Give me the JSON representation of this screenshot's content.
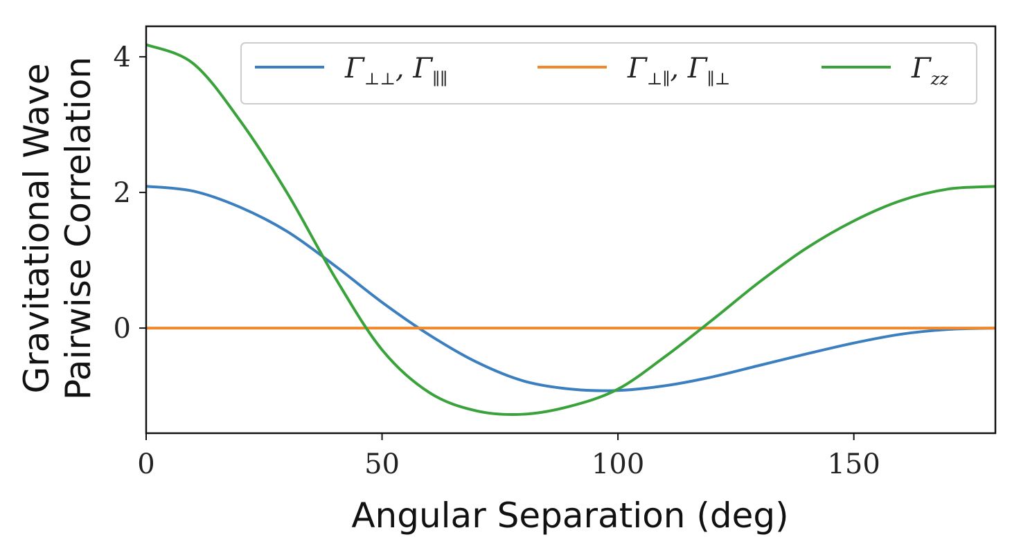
{
  "chart_data": {
    "type": "line",
    "title": "",
    "xlabel": "Angular Separation (deg)",
    "ylabel_lines": [
      "Gravitational Wave",
      "Pairwise Correlation"
    ],
    "xlim": [
      0,
      180
    ],
    "ylim": [
      -1.55,
      4.45
    ],
    "xticks": [
      0,
      50,
      100,
      150
    ],
    "xtick_labels": [
      "0",
      "50",
      "100",
      "150"
    ],
    "yticks": [
      0,
      2,
      4
    ],
    "ytick_labels": [
      "0",
      "2",
      "4"
    ],
    "grid": false,
    "legend_position": "top",
    "x": [
      0,
      10,
      20,
      30,
      40,
      50,
      60,
      70,
      80,
      90,
      100,
      110,
      120,
      130,
      140,
      150,
      160,
      170,
      180
    ],
    "series": [
      {
        "name": "Γ⊥⊥, Γ∥∥",
        "legend_main": "Γ",
        "legend_sub1": "⊥⊥",
        "legend_mid": ", Γ",
        "legend_sub2": "∥∥",
        "color": "#3b7fbf",
        "values": [
          2.09,
          2.02,
          1.78,
          1.42,
          0.92,
          0.38,
          -0.1,
          -0.5,
          -0.78,
          -0.9,
          -0.92,
          -0.85,
          -0.72,
          -0.55,
          -0.38,
          -0.22,
          -0.09,
          -0.02,
          0.0
        ]
      },
      {
        "name": "Γ⊥∥, Γ∥⊥",
        "legend_main": "Γ",
        "legend_sub1": "⊥∥",
        "legend_mid": ", Γ",
        "legend_sub2": "∥⊥",
        "color": "#f0882e",
        "values": [
          0,
          0,
          0,
          0,
          0,
          0,
          0,
          0,
          0,
          0,
          0,
          0,
          0,
          0,
          0,
          0,
          0,
          0,
          0
        ]
      },
      {
        "name": "Γzz",
        "legend_main": "Γ",
        "legend_sub1": "zz",
        "legend_mid": "",
        "legend_sub2": "",
        "color": "#3aa23a",
        "values": [
          4.18,
          3.9,
          3.05,
          1.98,
          0.75,
          -0.32,
          -0.95,
          -1.22,
          -1.27,
          -1.15,
          -0.9,
          -0.42,
          0.12,
          0.68,
          1.18,
          1.58,
          1.88,
          2.05,
          2.09
        ]
      }
    ]
  }
}
